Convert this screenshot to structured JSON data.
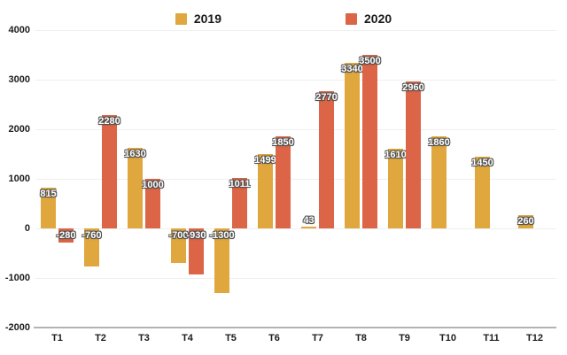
{
  "chart_data": {
    "type": "bar",
    "title": "",
    "xlabel": "",
    "ylabel": "",
    "categories": [
      "T1",
      "T2",
      "T3",
      "T4",
      "T5",
      "T6",
      "T7",
      "T8",
      "T9",
      "T10",
      "T11",
      "T12"
    ],
    "series": [
      {
        "name": "2019",
        "color": "#E0A73E",
        "values": [
          815,
          -760,
          1630,
          -700,
          -1300,
          1499,
          43,
          3340,
          1610,
          1860,
          1450,
          260
        ]
      },
      {
        "name": "2020",
        "color": "#DB6546",
        "values": [
          -280,
          2280,
          1000,
          -930,
          1011,
          1850,
          2770,
          3500,
          2960,
          null,
          null,
          null
        ]
      }
    ],
    "ylim": [
      -2000,
      4000
    ],
    "yticks": [
      4000,
      3000,
      2000,
      1000,
      0,
      -1000,
      -2000
    ],
    "grid": true,
    "legend_position": "top",
    "data_labels_visible": true
  },
  "legend": {
    "items": [
      {
        "label": "2019",
        "color": "#E0A73E"
      },
      {
        "label": "2020",
        "color": "#DB6546"
      }
    ]
  },
  "colors": {
    "background": "#ffffff",
    "gridline": "#efefef",
    "axis_line": "#b3b3b3",
    "tick_text": "#1c1c1c",
    "data_label_text": "#ffffff"
  }
}
